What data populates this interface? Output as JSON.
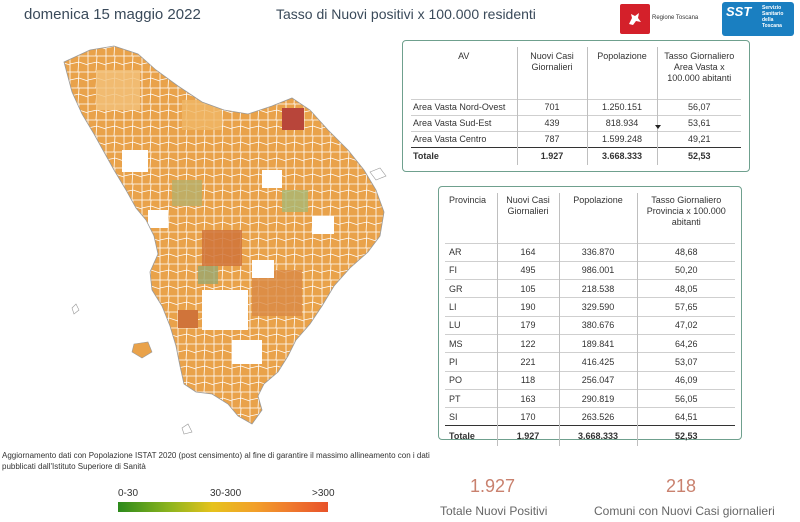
{
  "header": {
    "date": "domenica 15 maggio 2022",
    "headline": "Tasso di Nuovi positivi x 100.000 residenti"
  },
  "logos": {
    "regione": "Regione Toscana",
    "sst": "SST",
    "sst_sub": "Servizio Sanitario della Toscana"
  },
  "area_table": {
    "headers": [
      "AV",
      "Nuovi Casi Giornalieri",
      "Popolazione",
      "Tasso Giornaliero Area Vasta x 100.000 abitanti"
    ],
    "rows": [
      [
        "Area Vasta Nord-Ovest",
        "701",
        "1.250.151",
        "56,07"
      ],
      [
        "Area Vasta Sud-Est",
        "439",
        "818.934",
        "53,61"
      ],
      [
        "Area Vasta Centro",
        "787",
        "1.599.248",
        "49,21"
      ]
    ],
    "total": [
      "Totale",
      "1.927",
      "3.668.333",
      "52,53"
    ]
  },
  "province_table": {
    "headers": [
      "Provincia",
      "Nuovi Casi Giornalieri",
      "Popolazione",
      "Tasso Giornaliero Provincia x 100.000 abitanti"
    ],
    "rows": [
      [
        "AR",
        "164",
        "336.870",
        "48,68"
      ],
      [
        "FI",
        "495",
        "986.001",
        "50,20"
      ],
      [
        "GR",
        "105",
        "218.538",
        "48,05"
      ],
      [
        "LI",
        "190",
        "329.590",
        "57,65"
      ],
      [
        "LU",
        "179",
        "380.676",
        "47,02"
      ],
      [
        "MS",
        "122",
        "189.841",
        "64,26"
      ],
      [
        "PI",
        "221",
        "416.425",
        "53,07"
      ],
      [
        "PO",
        "118",
        "256.047",
        "46,09"
      ],
      [
        "PT",
        "163",
        "290.819",
        "56,05"
      ],
      [
        "SI",
        "170",
        "263.526",
        "64,51"
      ]
    ],
    "total": [
      "Totale",
      "1.927",
      "3.668.333",
      "52,53"
    ]
  },
  "note": "Aggiornamento dati con Popolazione ISTAT 2020 (post censimento) al fine di garantire il massimo allineamento con i dati pubblicati dall'Istituto Superiore di Sanità",
  "legend": {
    "low": "0-30",
    "mid": "30-300",
    "high": ">300"
  },
  "kpis": {
    "total_value": "1.927",
    "total_label": "Totale Nuovi Positivi",
    "comuni_value": "218",
    "comuni_label": "Comuni con Nuovi Casi giornalieri"
  },
  "colors": {
    "accent": "#c9816e",
    "table_border": "#6fa08e",
    "map_fill_main": "#e9a24a",
    "map_fill_dark": "#d0743a",
    "map_fill_none": "#ffffff"
  }
}
